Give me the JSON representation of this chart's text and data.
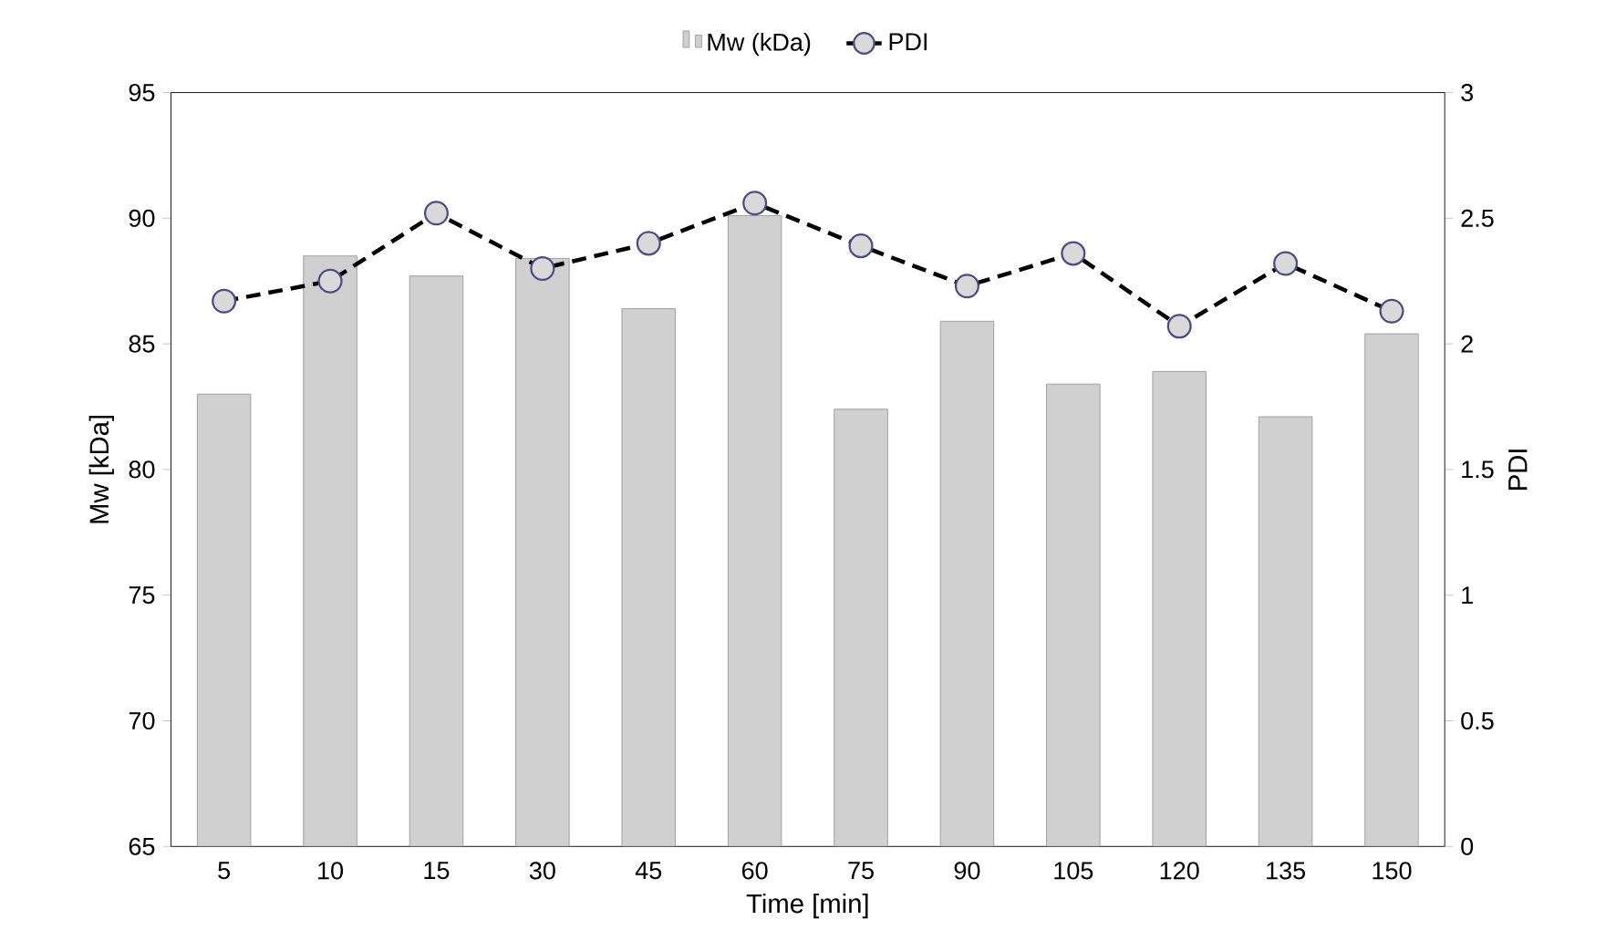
{
  "chart_data": {
    "type": "bar",
    "xlabel": "Time [min]",
    "ylabel": "Mw [kDa]",
    "y2label": "PDI",
    "categories": [
      "5",
      "10",
      "15",
      "30",
      "45",
      "60",
      "75",
      "90",
      "105",
      "120",
      "135",
      "150"
    ],
    "series": [
      {
        "name": "Mw (kDa)",
        "color": "#d0d0d0",
        "values": [
          83.0,
          88.5,
          87.7,
          88.4,
          86.4,
          90.1,
          82.4,
          85.9,
          83.4,
          83.9,
          82.1,
          85.4
        ]
      },
      {
        "name": "PDI",
        "type": "line",
        "axis": "y2",
        "color": "#000000",
        "values": [
          2.17,
          2.25,
          2.52,
          2.3,
          2.4,
          2.56,
          2.39,
          2.23,
          2.36,
          2.07,
          2.32,
          2.13
        ]
      }
    ],
    "ylim": [
      65,
      95
    ],
    "yticks": [
      65,
      70,
      75,
      80,
      85,
      90,
      95
    ],
    "y2lim": [
      0,
      3
    ],
    "y2ticks": [
      0,
      0.5,
      1,
      1.5,
      2,
      2.5,
      3
    ],
    "marker": "circle",
    "line_style": "dashed",
    "legend": "top"
  }
}
